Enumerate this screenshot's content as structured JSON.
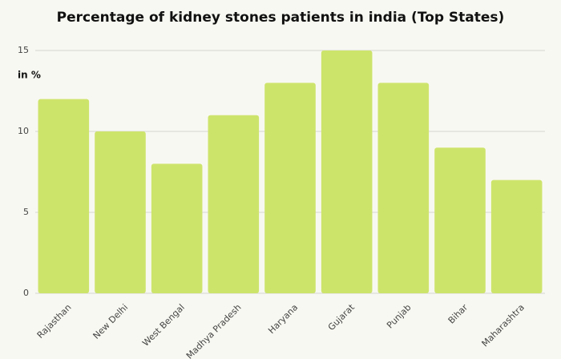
{
  "chart_data": {
    "type": "bar",
    "title": "Percentage of kidney stones patients in india (Top States)",
    "y_label": "in %",
    "categories": [
      "Rajasthan",
      "New Delhi",
      "West Bengal",
      "Madhya Pradesh",
      "Haryana",
      "Gujarat",
      "Punjab",
      "Bihar",
      "Maharashtra"
    ],
    "values": [
      12,
      10,
      8,
      11,
      13,
      15,
      13,
      9,
      7
    ],
    "color": "#cde46b",
    "ylim": [
      0,
      15
    ],
    "yticks": [
      0,
      5,
      10,
      15
    ],
    "grid": true
  }
}
